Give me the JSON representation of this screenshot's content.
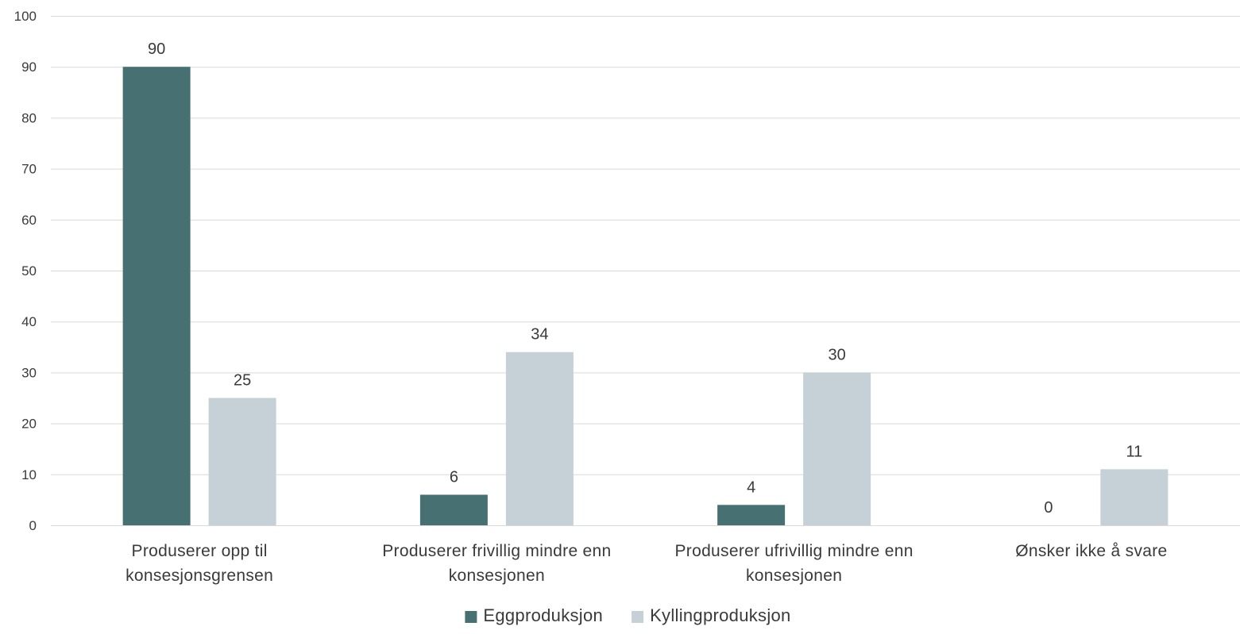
{
  "chart_data": {
    "type": "bar",
    "title": "",
    "xlabel": "",
    "ylabel": "",
    "ylim": [
      0,
      100
    ],
    "yticks": [
      0,
      10,
      20,
      30,
      40,
      50,
      60,
      70,
      80,
      90,
      100
    ],
    "grid": true,
    "legend_position": "bottom",
    "categories": [
      [
        "Produserer opp til",
        "konsesjonsgrensen"
      ],
      [
        "Produserer frivillig mindre enn",
        "konsesjonen"
      ],
      [
        "Produserer ufrivillig mindre enn",
        "konsesjonen"
      ],
      [
        "Ønsker ikke å svare"
      ]
    ],
    "series": [
      {
        "name": "Eggproduksjon",
        "color": "#477073",
        "values": [
          90,
          6,
          4,
          0
        ]
      },
      {
        "name": "Kyllingproduksjon",
        "color": "#c5d1d7",
        "values": [
          25,
          34,
          30,
          11
        ]
      }
    ]
  }
}
